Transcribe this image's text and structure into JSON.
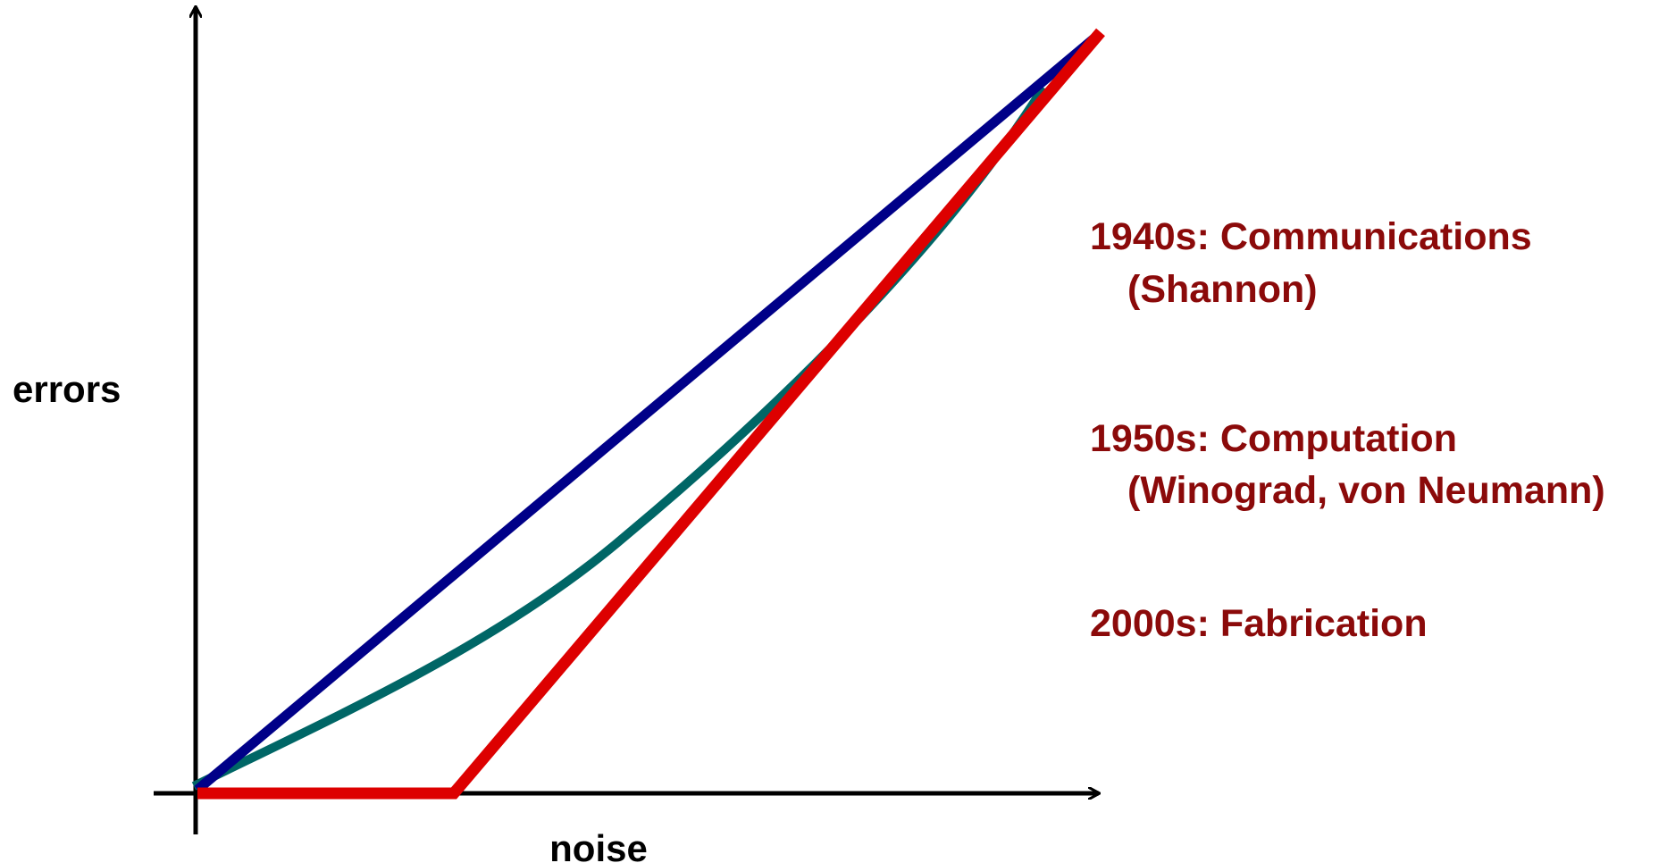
{
  "axes": {
    "y_label": "errors",
    "x_label": "noise"
  },
  "annotations": [
    {
      "lines": [
        "1940s: Communications",
        "(Shannon)"
      ]
    },
    {
      "lines": [
        "1950s: Computation",
        "(Winograd, von Neumann)"
      ]
    },
    {
      "lines": [
        "2000s: Fabrication"
      ]
    }
  ]
}
